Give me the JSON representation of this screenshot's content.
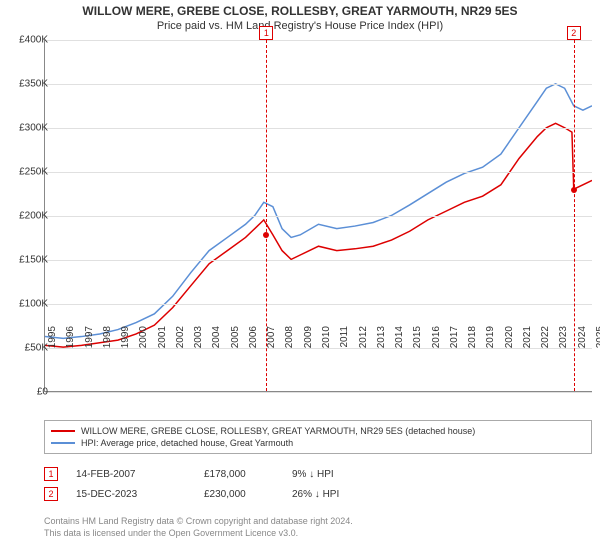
{
  "title": "WILLOW MERE, GREBE CLOSE, ROLLESBY, GREAT YARMOUTH, NR29 5ES",
  "subtitle": "Price paid vs. HM Land Registry's House Price Index (HPI)",
  "chart": {
    "type": "line",
    "background_color": "#ffffff",
    "grid_color": "#e0e0e0",
    "axis_color": "#888888",
    "ylim": [
      0,
      400000
    ],
    "ytick_step": 50000,
    "yticks": [
      "£0",
      "£50K",
      "£100K",
      "£150K",
      "£200K",
      "£250K",
      "£300K",
      "£350K",
      "£400K"
    ],
    "xlim": [
      1995,
      2025
    ],
    "xticks": [
      "1995",
      "1996",
      "1997",
      "1998",
      "1999",
      "2000",
      "2001",
      "2002",
      "2003",
      "2004",
      "2005",
      "2006",
      "2007",
      "2008",
      "2009",
      "2010",
      "2011",
      "2012",
      "2013",
      "2014",
      "2015",
      "2016",
      "2017",
      "2018",
      "2019",
      "2020",
      "2021",
      "2022",
      "2023",
      "2024",
      "2025"
    ],
    "label_fontsize": 10,
    "marker_color": "#dd0000",
    "series": [
      {
        "name": "WILLOW MERE, GREBE CLOSE, ROLLESBY, GREAT YARMOUTH, NR29 5ES (detached house)",
        "color": "#dd0000",
        "width": 1.5,
        "points": [
          [
            1995,
            52000
          ],
          [
            1996,
            50000
          ],
          [
            1997,
            52000
          ],
          [
            1998,
            55000
          ],
          [
            1999,
            58000
          ],
          [
            2000,
            65000
          ],
          [
            2001,
            75000
          ],
          [
            2002,
            95000
          ],
          [
            2003,
            120000
          ],
          [
            2004,
            145000
          ],
          [
            2005,
            160000
          ],
          [
            2006,
            175000
          ],
          [
            2006.5,
            185000
          ],
          [
            2007,
            195000
          ],
          [
            2007.5,
            178000
          ],
          [
            2008,
            160000
          ],
          [
            2008.5,
            150000
          ],
          [
            2009,
            155000
          ],
          [
            2010,
            165000
          ],
          [
            2011,
            160000
          ],
          [
            2012,
            162000
          ],
          [
            2013,
            165000
          ],
          [
            2014,
            172000
          ],
          [
            2015,
            182000
          ],
          [
            2016,
            195000
          ],
          [
            2017,
            205000
          ],
          [
            2018,
            215000
          ],
          [
            2019,
            222000
          ],
          [
            2020,
            235000
          ],
          [
            2021,
            265000
          ],
          [
            2022,
            290000
          ],
          [
            2022.5,
            300000
          ],
          [
            2023,
            305000
          ],
          [
            2023.5,
            300000
          ],
          [
            2023.9,
            295000
          ],
          [
            2024,
            230000
          ],
          [
            2024.5,
            235000
          ],
          [
            2025,
            240000
          ]
        ]
      },
      {
        "name": "HPI: Average price, detached house, Great Yarmouth",
        "color": "#5b8fd6",
        "width": 1.5,
        "points": [
          [
            1995,
            62000
          ],
          [
            1996,
            60000
          ],
          [
            1997,
            62000
          ],
          [
            1998,
            65000
          ],
          [
            1999,
            70000
          ],
          [
            2000,
            78000
          ],
          [
            2001,
            88000
          ],
          [
            2002,
            108000
          ],
          [
            2003,
            135000
          ],
          [
            2004,
            160000
          ],
          [
            2005,
            175000
          ],
          [
            2006,
            190000
          ],
          [
            2006.5,
            200000
          ],
          [
            2007,
            215000
          ],
          [
            2007.5,
            210000
          ],
          [
            2008,
            185000
          ],
          [
            2008.5,
            175000
          ],
          [
            2009,
            178000
          ],
          [
            2010,
            190000
          ],
          [
            2011,
            185000
          ],
          [
            2012,
            188000
          ],
          [
            2013,
            192000
          ],
          [
            2014,
            200000
          ],
          [
            2015,
            212000
          ],
          [
            2016,
            225000
          ],
          [
            2017,
            238000
          ],
          [
            2018,
            248000
          ],
          [
            2019,
            255000
          ],
          [
            2020,
            270000
          ],
          [
            2021,
            300000
          ],
          [
            2022,
            330000
          ],
          [
            2022.5,
            345000
          ],
          [
            2023,
            350000
          ],
          [
            2023.5,
            345000
          ],
          [
            2024,
            325000
          ],
          [
            2024.5,
            320000
          ],
          [
            2025,
            325000
          ]
        ]
      }
    ],
    "sale_markers": [
      {
        "num": "1",
        "x": 2007.12,
        "y": 178000
      },
      {
        "num": "2",
        "x": 2023.95,
        "y": 230000
      }
    ]
  },
  "legend": {
    "rows": [
      {
        "color": "#dd0000",
        "label": "WILLOW MERE, GREBE CLOSE, ROLLESBY, GREAT YARMOUTH, NR29 5ES (detached house)"
      },
      {
        "color": "#5b8fd6",
        "label": "HPI: Average price, detached house, Great Yarmouth"
      }
    ]
  },
  "sales": [
    {
      "num": "1",
      "date": "14-FEB-2007",
      "price": "£178,000",
      "diff": "9% ↓ HPI"
    },
    {
      "num": "2",
      "date": "15-DEC-2023",
      "price": "£230,000",
      "diff": "26% ↓ HPI"
    }
  ],
  "footer": {
    "line1": "Contains HM Land Registry data © Crown copyright and database right 2024.",
    "line2": "This data is licensed under the Open Government Licence v3.0."
  }
}
